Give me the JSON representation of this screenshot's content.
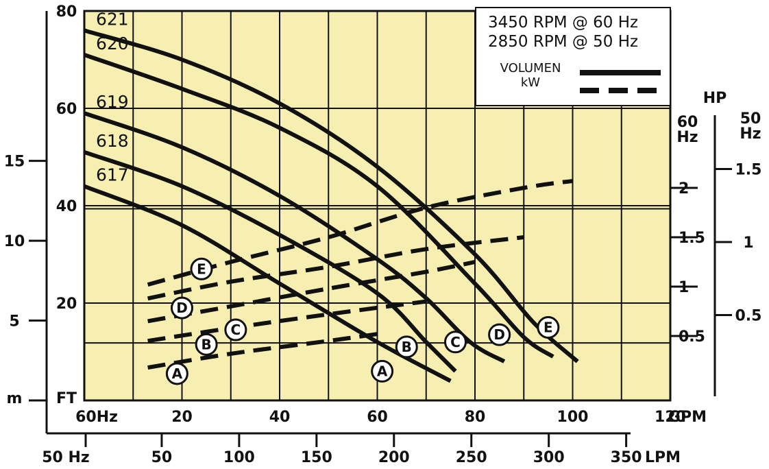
{
  "chart_data": {
    "type": "line",
    "title": "",
    "speed_lines": [
      "3450 RPM @ 60 Hz",
      "2850 RPM @ 50 Hz"
    ],
    "legend": [
      {
        "label": "VOLUMEN",
        "style": "solid"
      },
      {
        "label": "kW",
        "style": "dashed"
      }
    ],
    "axes": {
      "gpm_60hz": {
        "label": "GPM",
        "range_label": "60Hz",
        "ticks": [
          "20",
          "40",
          "60",
          "80",
          "100",
          "120"
        ],
        "range": [
          0,
          120
        ]
      },
      "lpm_50hz": {
        "label": "LPM",
        "range_label": "50 Hz",
        "ticks": [
          "50",
          "100",
          "150",
          "200",
          "250",
          "300",
          "350"
        ],
        "range": [
          0,
          400
        ]
      },
      "head_ft": {
        "label": "FT",
        "ticks": [
          "20",
          "40",
          "60",
          "80"
        ],
        "range": [
          0,
          80
        ]
      },
      "head_m": {
        "label": "m",
        "ticks": [
          "5",
          "10",
          "15"
        ],
        "range": [
          0,
          17.5
        ]
      },
      "hp_60hz": {
        "label": "60\nHz",
        "title": "HP",
        "ticks": [
          "0.5",
          "1",
          "1.5",
          "2"
        ]
      },
      "hp_50hz": {
        "label": "50\nHz",
        "ticks": [
          "0.5",
          "1",
          "1.5"
        ]
      }
    },
    "x_grid_gpm": [
      10,
      20,
      30,
      40,
      50,
      60,
      70,
      80,
      90,
      100,
      110,
      120
    ],
    "y_grid_ft": [
      20,
      40,
      60
    ],
    "head_curves": [
      {
        "name": "617",
        "points": [
          [
            0,
            44
          ],
          [
            20,
            36
          ],
          [
            40,
            24
          ],
          [
            60,
            12
          ],
          [
            75,
            4
          ]
        ]
      },
      {
        "name": "618",
        "points": [
          [
            0,
            51
          ],
          [
            20,
            44
          ],
          [
            40,
            34
          ],
          [
            60,
            22
          ],
          [
            70,
            12
          ],
          [
            76,
            6
          ]
        ]
      },
      {
        "name": "619",
        "points": [
          [
            0,
            59
          ],
          [
            20,
            52
          ],
          [
            40,
            42
          ],
          [
            60,
            29
          ],
          [
            70,
            21
          ],
          [
            79,
            12
          ],
          [
            86,
            8
          ]
        ]
      },
      {
        "name": "620",
        "points": [
          [
            0,
            71
          ],
          [
            20,
            64
          ],
          [
            40,
            56
          ],
          [
            60,
            44
          ],
          [
            80,
            24
          ],
          [
            90,
            13
          ],
          [
            96,
            9
          ]
        ]
      },
      {
        "name": "621",
        "points": [
          [
            0,
            76
          ],
          [
            20,
            70
          ],
          [
            40,
            61
          ],
          [
            60,
            48
          ],
          [
            80,
            30
          ],
          [
            92,
            16
          ],
          [
            101,
            8
          ]
        ]
      }
    ],
    "power_curves": [
      {
        "name": "A",
        "points": [
          [
            13,
            0.18
          ],
          [
            30,
            0.32
          ],
          [
            50,
            0.45
          ],
          [
            60,
            0.52
          ]
        ]
      },
      {
        "name": "B",
        "points": [
          [
            13,
            0.45
          ],
          [
            30,
            0.58
          ],
          [
            50,
            0.72
          ],
          [
            70,
            0.85
          ]
        ]
      },
      {
        "name": "C",
        "points": [
          [
            13,
            0.65
          ],
          [
            30,
            0.8
          ],
          [
            50,
            0.98
          ],
          [
            70,
            1.15
          ],
          [
            80,
            1.25
          ]
        ]
      },
      {
        "name": "D",
        "points": [
          [
            13,
            0.88
          ],
          [
            30,
            1.05
          ],
          [
            50,
            1.2
          ],
          [
            70,
            1.38
          ],
          [
            90,
            1.5
          ]
        ]
      },
      {
        "name": "E",
        "points": [
          [
            13,
            1.02
          ],
          [
            30,
            1.25
          ],
          [
            50,
            1.5
          ],
          [
            70,
            1.8
          ],
          [
            90,
            2.0
          ],
          [
            100,
            2.07
          ]
        ]
      }
    ],
    "head_labels": [
      {
        "text": "621",
        "x": 0,
        "y": 76
      },
      {
        "text": "620",
        "x": 0,
        "y": 71
      },
      {
        "text": "619",
        "x": 0,
        "y": 59
      },
      {
        "text": "618",
        "x": 0,
        "y": 51
      },
      {
        "text": "617",
        "x": 0,
        "y": 44
      }
    ],
    "circle_markers": [
      {
        "text": "E",
        "x": 24,
        "y": 27
      },
      {
        "text": "D",
        "x": 20,
        "y": 19
      },
      {
        "text": "C",
        "x": 31,
        "y": 14.5
      },
      {
        "text": "B",
        "x": 25,
        "y": 11.5
      },
      {
        "text": "A",
        "x": 19,
        "y": 5.5
      },
      {
        "text": "A",
        "x": 61,
        "y": 6
      },
      {
        "text": "B",
        "x": 66,
        "y": 11
      },
      {
        "text": "C",
        "x": 76,
        "y": 12
      },
      {
        "text": "D",
        "x": 85,
        "y": 13.5
      },
      {
        "text": "E",
        "x": 95,
        "y": 15
      }
    ]
  }
}
